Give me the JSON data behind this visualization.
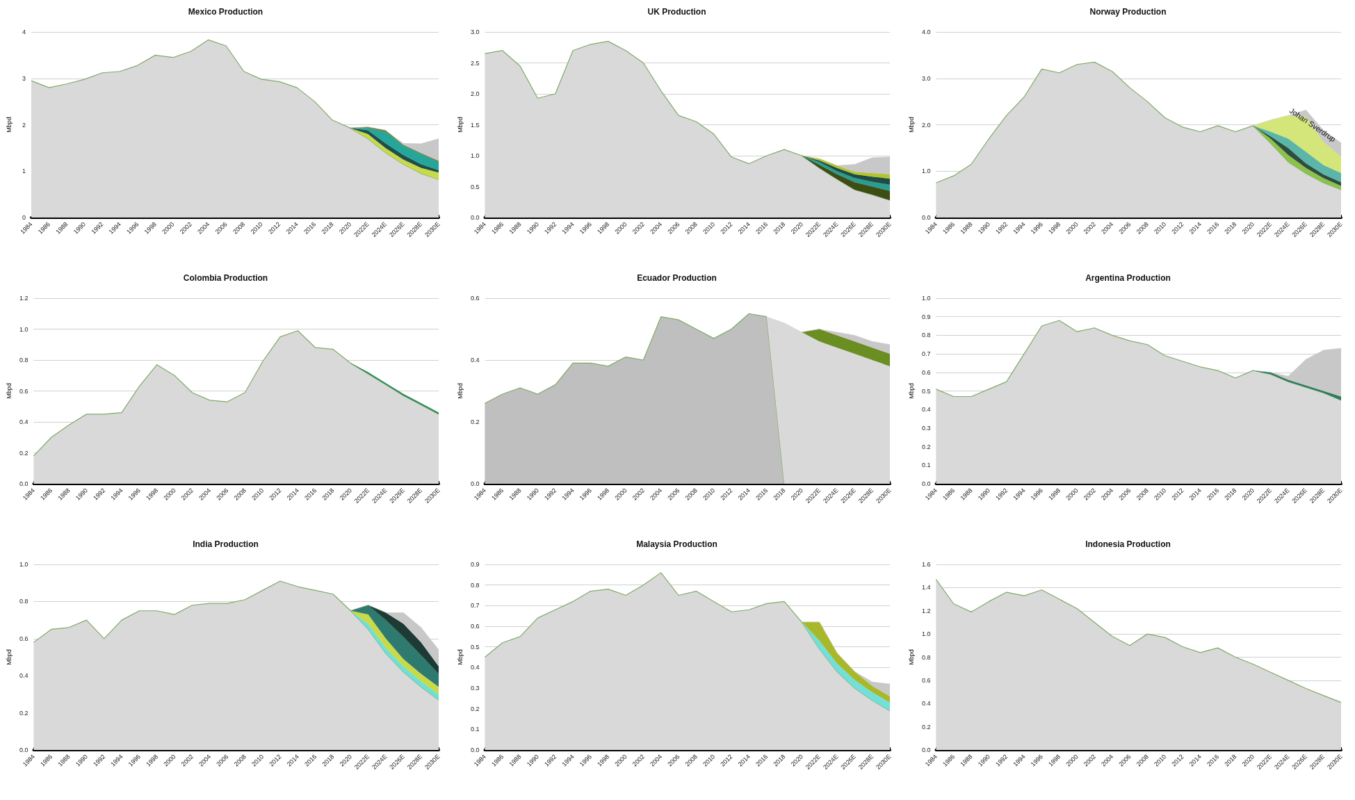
{
  "chart_data": [
    {
      "type": "area",
      "title": "Mexico Production",
      "ylabel": "Mbpd",
      "stacked": true,
      "grid": "y",
      "categories": [
        "1984",
        "1986",
        "1988",
        "1990",
        "1992",
        "1994",
        "1996",
        "1998",
        "2000",
        "2002",
        "2004",
        "2006",
        "2008",
        "2010",
        "2012",
        "2014",
        "2016",
        "2018",
        "2020",
        "2022E",
        "2024E",
        "2026E",
        "2028E",
        "2030E"
      ],
      "ylim": [
        0,
        4
      ],
      "yticks": [
        0,
        1,
        2,
        3,
        4
      ],
      "series": [
        {
          "color": "#d9d9d9",
          "values": [
            2.95,
            2.8,
            2.88,
            2.98,
            3.12,
            3.15,
            3.28,
            3.5,
            3.45,
            3.58,
            3.83,
            3.7,
            3.15,
            2.98,
            2.93,
            2.8,
            2.5,
            2.1,
            1.93,
            1.7,
            1.4,
            1.15,
            0.95,
            0.82
          ]
        },
        {
          "color": "#c8d94a",
          "values": [
            null,
            null,
            null,
            null,
            null,
            null,
            null,
            null,
            null,
            null,
            null,
            null,
            null,
            null,
            null,
            null,
            null,
            null,
            0,
            0.1,
            0.1,
            0.1,
            0.12,
            0.15
          ]
        },
        {
          "color": "#1f4e4a",
          "values": [
            null,
            null,
            null,
            null,
            null,
            null,
            null,
            null,
            null,
            null,
            null,
            null,
            null,
            null,
            null,
            null,
            null,
            null,
            0,
            0.08,
            0.1,
            0.1,
            0.08,
            0.05
          ]
        },
        {
          "color": "#26a69a",
          "values": [
            null,
            null,
            null,
            null,
            null,
            null,
            null,
            null,
            null,
            null,
            null,
            null,
            null,
            null,
            null,
            null,
            null,
            null,
            0,
            0.05,
            0.25,
            0.2,
            0.22,
            0.18
          ]
        },
        {
          "color": "#6b7a2a",
          "values": [
            null,
            null,
            null,
            null,
            null,
            null,
            null,
            null,
            null,
            null,
            null,
            null,
            null,
            null,
            null,
            null,
            null,
            null,
            0,
            0.02,
            0.03,
            0.02,
            0.02,
            0.02
          ]
        },
        {
          "color": "#c8c8c8",
          "values": [
            null,
            null,
            null,
            null,
            null,
            null,
            null,
            null,
            null,
            null,
            null,
            null,
            null,
            null,
            null,
            null,
            null,
            null,
            0,
            0,
            0,
            0.03,
            0.2,
            0.48
          ]
        }
      ]
    },
    {
      "type": "area",
      "title": "UK Production",
      "ylabel": "Mbpd",
      "stacked": true,
      "grid": "y",
      "categories": [
        "1984",
        "1986",
        "1988",
        "1990",
        "1992",
        "1994",
        "1996",
        "1998",
        "2000",
        "2002",
        "2004",
        "2006",
        "2008",
        "2010",
        "2012",
        "2014",
        "2016",
        "2018",
        "2020",
        "2022E",
        "2024E",
        "2026E",
        "2028E",
        "2030E"
      ],
      "ylim": [
        0,
        3
      ],
      "yticks": [
        {
          "value": 0,
          "label": "0.0"
        },
        0.5,
        {
          "value": 1,
          "label": "1.0"
        },
        1.5,
        {
          "value": 2,
          "label": "2.0"
        },
        2.5,
        {
          "value": 3,
          "label": "3.0"
        }
      ],
      "series": [
        {
          "color": "#d9d9d9",
          "values": [
            2.65,
            2.7,
            2.45,
            1.93,
            2.0,
            2.7,
            2.8,
            2.85,
            2.7,
            2.5,
            2.05,
            1.65,
            1.55,
            1.35,
            0.98,
            0.87,
            1.0,
            1.1,
            1.0,
            0.8,
            0.62,
            0.45,
            0.37,
            0.28
          ]
        },
        {
          "color": "#3d4d13",
          "values": [
            null,
            null,
            null,
            null,
            null,
            null,
            null,
            null,
            null,
            null,
            null,
            null,
            null,
            null,
            null,
            null,
            null,
            null,
            0,
            0.05,
            0.08,
            0.12,
            0.13,
            0.15
          ]
        },
        {
          "color": "#2b9c8f",
          "values": [
            null,
            null,
            null,
            null,
            null,
            null,
            null,
            null,
            null,
            null,
            null,
            null,
            null,
            null,
            null,
            null,
            null,
            null,
            0,
            0.05,
            0.05,
            0.07,
            0.08,
            0.1
          ]
        },
        {
          "color": "#1f4d45",
          "values": [
            null,
            null,
            null,
            null,
            null,
            null,
            null,
            null,
            null,
            null,
            null,
            null,
            null,
            null,
            null,
            null,
            null,
            null,
            0,
            0.02,
            0.05,
            0.06,
            0.08,
            0.1
          ]
        },
        {
          "color": "#b5c42e",
          "values": [
            null,
            null,
            null,
            null,
            null,
            null,
            null,
            null,
            null,
            null,
            null,
            null,
            null,
            null,
            null,
            null,
            null,
            null,
            0,
            0.03,
            0.04,
            0.04,
            0.06,
            0.07
          ]
        },
        {
          "color": "#c8c8c8",
          "values": [
            null,
            null,
            null,
            null,
            null,
            null,
            null,
            null,
            null,
            null,
            null,
            null,
            null,
            null,
            null,
            null,
            null,
            null,
            0,
            0,
            0,
            0.12,
            0.25,
            0.28
          ]
        }
      ]
    },
    {
      "type": "area",
      "title": "Norway Production",
      "ylabel": "Mbpd",
      "stacked": true,
      "grid": "y",
      "categories": [
        "1984",
        "1986",
        "1988",
        "1990",
        "1992",
        "1994",
        "1996",
        "1998",
        "2000",
        "2002",
        "2004",
        "2006",
        "2008",
        "2010",
        "2012",
        "2014",
        "2016",
        "2018",
        "2020",
        "2022E",
        "2024E",
        "2026E",
        "2028E",
        "2030E"
      ],
      "ylim": [
        0,
        4
      ],
      "yticks": [
        {
          "value": 0,
          "label": "0.0"
        },
        {
          "value": 1,
          "label": "1.0"
        },
        {
          "value": 2,
          "label": "2.0"
        },
        {
          "value": 3,
          "label": "3.0"
        },
        {
          "value": 4,
          "label": "4.0"
        }
      ],
      "annotations": [
        "Johan Sverdrup"
      ],
      "series": [
        {
          "color": "#d9d9d9",
          "values": [
            0.75,
            0.9,
            1.15,
            1.7,
            2.2,
            2.6,
            3.2,
            3.12,
            3.3,
            3.35,
            3.15,
            2.8,
            2.5,
            2.15,
            1.95,
            1.85,
            1.98,
            1.85,
            1.98,
            1.6,
            1.2,
            0.95,
            0.75,
            0.6
          ]
        },
        {
          "color": "#8bc34a",
          "values": [
            null,
            null,
            null,
            null,
            null,
            null,
            null,
            null,
            null,
            null,
            null,
            null,
            null,
            null,
            null,
            null,
            null,
            null,
            0,
            0.1,
            0.15,
            0.12,
            0.1,
            0.08
          ]
        },
        {
          "color": "#2e4d3f",
          "values": [
            null,
            null,
            null,
            null,
            null,
            null,
            null,
            null,
            null,
            null,
            null,
            null,
            null,
            null,
            null,
            null,
            null,
            null,
            0,
            0.05,
            0.15,
            0.1,
            0.08,
            0.08
          ]
        },
        {
          "color": "#5bb5a8",
          "values": [
            null,
            null,
            null,
            null,
            null,
            null,
            null,
            null,
            null,
            null,
            null,
            null,
            null,
            null,
            null,
            null,
            null,
            null,
            0,
            0.1,
            0.2,
            0.25,
            0.2,
            0.2
          ]
        },
        {
          "color": "#d4e57a",
          "values": [
            null,
            null,
            null,
            null,
            null,
            null,
            null,
            null,
            null,
            null,
            null,
            null,
            null,
            null,
            null,
            null,
            null,
            null,
            0,
            0.25,
            0.5,
            0.75,
            0.5,
            0.35
          ]
        },
        {
          "color": "#c8c8c8",
          "values": [
            null,
            null,
            null,
            null,
            null,
            null,
            null,
            null,
            null,
            null,
            null,
            null,
            null,
            null,
            null,
            null,
            null,
            null,
            0,
            0,
            0,
            0.15,
            0.25,
            0.3
          ]
        }
      ]
    },
    {
      "type": "area",
      "title": "Colombia Production",
      "ylabel": "Mbpd",
      "stacked": true,
      "grid": "y",
      "categories": [
        "1984",
        "1986",
        "1988",
        "1990",
        "1992",
        "1994",
        "1996",
        "1998",
        "2000",
        "2002",
        "2004",
        "2006",
        "2008",
        "2010",
        "2012",
        "2014",
        "2016",
        "2018",
        "2020",
        "2022E",
        "2024E",
        "2026E",
        "2028E",
        "2030E"
      ],
      "ylim": [
        0,
        1.2
      ],
      "yticks": [
        {
          "value": 0,
          "label": "0.0"
        },
        0.2,
        0.4,
        0.6,
        0.8,
        {
          "value": 1,
          "label": "1.0"
        },
        1.2
      ],
      "series": [
        {
          "color": "#d9d9d9",
          "values": [
            0.18,
            0.3,
            0.38,
            0.45,
            0.45,
            0.46,
            0.63,
            0.77,
            0.7,
            0.59,
            0.54,
            0.53,
            0.59,
            0.79,
            0.95,
            0.99,
            0.88,
            0.87,
            0.78,
            0.71,
            0.64,
            0.57,
            0.51,
            0.45
          ]
        },
        {
          "color": "#2e8b57",
          "values": [
            null,
            null,
            null,
            null,
            null,
            null,
            null,
            null,
            null,
            null,
            null,
            null,
            null,
            null,
            null,
            null,
            null,
            null,
            0,
            0.01,
            0.01,
            0.01,
            0.01,
            0.01
          ]
        }
      ]
    },
    {
      "type": "area",
      "title": "Ecuador Production",
      "ylabel": "Mbpd",
      "stacked": true,
      "grid": "y",
      "categories": [
        "1984",
        "1986",
        "1988",
        "1990",
        "1992",
        "1994",
        "1996",
        "1998",
        "2000",
        "2002",
        "2004",
        "2006",
        "2008",
        "2010",
        "2012",
        "2014",
        "2016",
        "2018",
        "2020",
        "2022E",
        "2024E",
        "2026E",
        "2028E",
        "2030E"
      ],
      "ylim": [
        0,
        0.6
      ],
      "yticks": [
        {
          "value": 0,
          "label": "0.0"
        },
        0.2,
        0.4,
        0.6
      ],
      "series": [
        {
          "color": "#bfbfbf",
          "values": [
            0.26,
            0.29,
            0.31,
            0.29,
            0.32,
            0.39,
            0.39,
            0.38,
            0.41,
            0.4,
            0.54,
            0.53,
            0.5,
            0.47,
            0.5,
            0.55,
            0.54,
            0,
            null,
            null,
            null,
            null,
            null,
            null
          ]
        },
        {
          "color": "#d9d9d9",
          "values": [
            null,
            null,
            null,
            null,
            null,
            null,
            null,
            null,
            null,
            null,
            null,
            null,
            null,
            null,
            null,
            null,
            0,
            0.52,
            0.49,
            0.46,
            0.44,
            0.42,
            0.4,
            0.38
          ]
        },
        {
          "color": "#6b8e23",
          "values": [
            null,
            null,
            null,
            null,
            null,
            null,
            null,
            null,
            null,
            null,
            null,
            null,
            null,
            null,
            null,
            null,
            null,
            null,
            0,
            0.04,
            0.04,
            0.04,
            0.04,
            0.04
          ]
        },
        {
          "color": "#c8c8c8",
          "values": [
            null,
            null,
            null,
            null,
            null,
            null,
            null,
            null,
            null,
            null,
            null,
            null,
            null,
            null,
            null,
            null,
            null,
            null,
            0,
            0,
            0.01,
            0.02,
            0.02,
            0.03
          ]
        }
      ]
    },
    {
      "type": "area",
      "title": "Argentina Production",
      "ylabel": "Mbpd",
      "stacked": true,
      "grid": "y",
      "categories": [
        "1984",
        "1986",
        "1988",
        "1990",
        "1992",
        "1994",
        "1996",
        "1998",
        "2000",
        "2002",
        "2004",
        "2006",
        "2008",
        "2010",
        "2012",
        "2014",
        "2016",
        "2018",
        "2020",
        "2022E",
        "2024E",
        "2026E",
        "2028E",
        "2030E"
      ],
      "ylim": [
        0,
        1
      ],
      "yticks": [
        {
          "value": 0,
          "label": "0.0"
        },
        0.1,
        0.2,
        0.3,
        0.4,
        0.5,
        0.6,
        0.7,
        0.8,
        0.9,
        {
          "value": 1,
          "label": "1.0"
        }
      ],
      "series": [
        {
          "color": "#d9d9d9",
          "values": [
            0.51,
            0.47,
            0.47,
            0.51,
            0.55,
            0.7,
            0.85,
            0.88,
            0.82,
            0.84,
            0.8,
            0.77,
            0.75,
            0.69,
            0.66,
            0.63,
            0.61,
            0.57,
            0.61,
            0.59,
            0.55,
            0.52,
            0.49,
            0.45
          ]
        },
        {
          "color": "#2e7d5b",
          "values": [
            null,
            null,
            null,
            null,
            null,
            null,
            null,
            null,
            null,
            null,
            null,
            null,
            null,
            null,
            null,
            null,
            null,
            null,
            0,
            0.01,
            0.01,
            0.01,
            0.01,
            0.02
          ]
        },
        {
          "color": "#c8c8c8",
          "values": [
            null,
            null,
            null,
            null,
            null,
            null,
            null,
            null,
            null,
            null,
            null,
            null,
            null,
            null,
            null,
            null,
            null,
            null,
            0,
            0,
            0.02,
            0.14,
            0.22,
            0.26
          ]
        }
      ]
    },
    {
      "type": "area",
      "title": "India Production",
      "ylabel": "Mbpd",
      "stacked": true,
      "grid": "y",
      "categories": [
        "1984",
        "1986",
        "1988",
        "1990",
        "1992",
        "1994",
        "1996",
        "1998",
        "2000",
        "2002",
        "2004",
        "2006",
        "2008",
        "2010",
        "2012",
        "2014",
        "2016",
        "2018",
        "2020",
        "2022E",
        "2024E",
        "2026E",
        "2028E",
        "2030E"
      ],
      "ylim": [
        0,
        1
      ],
      "yticks": [
        {
          "value": 0,
          "label": "0.0"
        },
        0.2,
        0.4,
        0.6,
        0.8,
        {
          "value": 1,
          "label": "1.0"
        }
      ],
      "series": [
        {
          "color": "#d9d9d9",
          "values": [
            0.58,
            0.65,
            0.66,
            0.7,
            0.6,
            0.7,
            0.75,
            0.75,
            0.73,
            0.78,
            0.79,
            0.79,
            0.81,
            0.86,
            0.91,
            0.88,
            0.86,
            0.84,
            0.75,
            0.65,
            0.52,
            0.42,
            0.34,
            0.27
          ]
        },
        {
          "color": "#6fe0d6",
          "values": [
            null,
            null,
            null,
            null,
            null,
            null,
            null,
            null,
            null,
            null,
            null,
            null,
            null,
            null,
            null,
            null,
            null,
            null,
            0,
            0.03,
            0.03,
            0.03,
            0.03,
            0.03
          ]
        },
        {
          "color": "#c9d94a",
          "values": [
            null,
            null,
            null,
            null,
            null,
            null,
            null,
            null,
            null,
            null,
            null,
            null,
            null,
            null,
            null,
            null,
            null,
            null,
            0,
            0.05,
            0.05,
            0.04,
            0.04,
            0.04
          ]
        },
        {
          "color": "#2e7a6e",
          "values": [
            null,
            null,
            null,
            null,
            null,
            null,
            null,
            null,
            null,
            null,
            null,
            null,
            null,
            null,
            null,
            null,
            null,
            null,
            0,
            0.05,
            0.1,
            0.12,
            0.1,
            0.07
          ]
        },
        {
          "color": "#1d3a35",
          "values": [
            null,
            null,
            null,
            null,
            null,
            null,
            null,
            null,
            null,
            null,
            null,
            null,
            null,
            null,
            null,
            null,
            null,
            null,
            0,
            0,
            0.04,
            0.07,
            0.07,
            0.04
          ]
        },
        {
          "color": "#c8c8c8",
          "values": [
            null,
            null,
            null,
            null,
            null,
            null,
            null,
            null,
            null,
            null,
            null,
            null,
            null,
            null,
            null,
            null,
            null,
            null,
            0,
            0,
            0,
            0.06,
            0.08,
            0.09
          ]
        }
      ]
    },
    {
      "type": "area",
      "title": "Malaysia Production",
      "ylabel": "Mbpd",
      "stacked": true,
      "grid": "y",
      "categories": [
        "1984",
        "1986",
        "1988",
        "1990",
        "1992",
        "1994",
        "1996",
        "1998",
        "2000",
        "2002",
        "2004",
        "2006",
        "2008",
        "2010",
        "2012",
        "2014",
        "2016",
        "2018",
        "2020",
        "2022E",
        "2024E",
        "2026E",
        "2028E",
        "2030E"
      ],
      "ylim": [
        0,
        0.9
      ],
      "yticks": [
        {
          "value": 0,
          "label": "0.0"
        },
        0.1,
        0.2,
        0.3,
        0.4,
        0.5,
        0.6,
        0.7,
        0.8,
        0.9
      ],
      "series": [
        {
          "color": "#d9d9d9",
          "values": [
            0.45,
            0.52,
            0.55,
            0.64,
            0.68,
            0.72,
            0.77,
            0.78,
            0.75,
            0.8,
            0.86,
            0.75,
            0.77,
            0.72,
            0.67,
            0.68,
            0.71,
            0.72,
            0.62,
            0.49,
            0.38,
            0.3,
            0.24,
            0.19
          ]
        },
        {
          "color": "#72e0d8",
          "values": [
            null,
            null,
            null,
            null,
            null,
            null,
            null,
            null,
            null,
            null,
            null,
            null,
            null,
            null,
            null,
            null,
            null,
            null,
            0,
            0.04,
            0.04,
            0.04,
            0.04,
            0.04
          ]
        },
        {
          "color": "#a9b82a",
          "values": [
            null,
            null,
            null,
            null,
            null,
            null,
            null,
            null,
            null,
            null,
            null,
            null,
            null,
            null,
            null,
            null,
            null,
            null,
            0,
            0.09,
            0.05,
            0.04,
            0.03,
            0.03
          ]
        },
        {
          "color": "#c8c8c8",
          "values": [
            null,
            null,
            null,
            null,
            null,
            null,
            null,
            null,
            null,
            null,
            null,
            null,
            null,
            null,
            null,
            null,
            null,
            null,
            0,
            0,
            0,
            0,
            0.02,
            0.06
          ]
        }
      ]
    },
    {
      "type": "area",
      "title": "Indonesia Production",
      "ylabel": "Mbpd",
      "stacked": true,
      "grid": "y",
      "categories": [
        "1984",
        "1986",
        "1988",
        "1990",
        "1992",
        "1994",
        "1996",
        "1998",
        "2000",
        "2002",
        "2004",
        "2006",
        "2008",
        "2010",
        "2012",
        "2014",
        "2016",
        "2018",
        "2020",
        "2022E",
        "2024E",
        "2026E",
        "2028E",
        "2030E"
      ],
      "ylim": [
        0,
        1.6
      ],
      "yticks": [
        {
          "value": 0,
          "label": "0.0"
        },
        0.2,
        0.4,
        0.6,
        0.8,
        {
          "value": 1,
          "label": "1.0"
        },
        1.2,
        1.4,
        1.6
      ],
      "series": [
        {
          "color": "#d9d9d9",
          "values": [
            1.47,
            1.26,
            1.19,
            1.28,
            1.36,
            1.33,
            1.38,
            1.3,
            1.22,
            1.1,
            0.98,
            0.9,
            1.0,
            0.97,
            0.89,
            0.84,
            0.88,
            0.8,
            0.74,
            0.67,
            0.6,
            0.53,
            0.47,
            0.41
          ]
        }
      ]
    }
  ]
}
